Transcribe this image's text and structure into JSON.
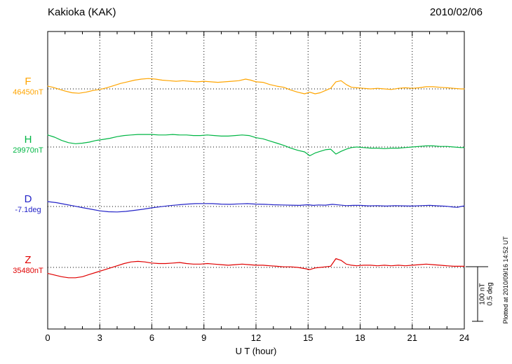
{
  "header": {
    "title": "Kakioka (KAK)",
    "date": "2010/02/06"
  },
  "axis": {
    "xlabel": "U T (hour)",
    "x_ticks": [
      0,
      3,
      6,
      9,
      12,
      15,
      18,
      21,
      24
    ],
    "x_min": 0,
    "x_max": 24
  },
  "side_note": "Plotted at 2010/09/16 14:52 UT",
  "scale_bar": {
    "labels": [
      "100 nT",
      "0.5 deg"
    ],
    "bar_nT": 100,
    "bar_deg": 0.5
  },
  "chart_data": {
    "type": "line",
    "title": "Kakioka (KAK) geomagnetic components, 2010/02/06",
    "xlabel": "U T (hour)",
    "x_range": [
      0,
      24
    ],
    "grid": "dotted vertical lines every 3 hours; dotted horizontal baseline per component",
    "legend_position": "left margin, one colored label per trace",
    "scale": {
      "bar_nT": 100,
      "bar_deg": 0.5
    },
    "series": [
      {
        "name": "F",
        "baseline_label": "46450nT",
        "baseline_value": 46450,
        "unit": "nT",
        "color": "#FFA500",
        "points": [
          [
            0,
            5
          ],
          [
            0.3,
            3
          ],
          [
            0.7,
            -1
          ],
          [
            1,
            -4
          ],
          [
            1.4,
            -7
          ],
          [
            1.8,
            -8
          ],
          [
            2.2,
            -6
          ],
          [
            2.6,
            -3
          ],
          [
            3,
            -1
          ],
          [
            3.4,
            2
          ],
          [
            3.8,
            6
          ],
          [
            4.2,
            10
          ],
          [
            4.6,
            13
          ],
          [
            5,
            16
          ],
          [
            5.4,
            18
          ],
          [
            5.8,
            19
          ],
          [
            6.2,
            18
          ],
          [
            6.6,
            16
          ],
          [
            7,
            15
          ],
          [
            7.4,
            14
          ],
          [
            7.8,
            15
          ],
          [
            8.2,
            14
          ],
          [
            8.6,
            13
          ],
          [
            9,
            14
          ],
          [
            9.4,
            13
          ],
          [
            9.8,
            12
          ],
          [
            10.2,
            13
          ],
          [
            10.6,
            14
          ],
          [
            11,
            15
          ],
          [
            11.4,
            18
          ],
          [
            11.7,
            16
          ],
          [
            12,
            13
          ],
          [
            12.4,
            12
          ],
          [
            12.8,
            8
          ],
          [
            13.2,
            5
          ],
          [
            13.6,
            3
          ],
          [
            14,
            -2
          ],
          [
            14.4,
            -6
          ],
          [
            14.8,
            -9
          ],
          [
            15.1,
            -6
          ],
          [
            15.4,
            -9
          ],
          [
            15.7,
            -7
          ],
          [
            16,
            -3
          ],
          [
            16.3,
            1
          ],
          [
            16.6,
            13
          ],
          [
            16.9,
            15
          ],
          [
            17.2,
            8
          ],
          [
            17.5,
            3
          ],
          [
            17.8,
            2
          ],
          [
            18.2,
            1
          ],
          [
            18.6,
            0
          ],
          [
            19,
            1
          ],
          [
            19.4,
            0
          ],
          [
            19.8,
            -1
          ],
          [
            20.2,
            1
          ],
          [
            20.6,
            2
          ],
          [
            21,
            1
          ],
          [
            21.4,
            2
          ],
          [
            21.8,
            4
          ],
          [
            22.2,
            4
          ],
          [
            22.6,
            3
          ],
          [
            23,
            2
          ],
          [
            23.4,
            1
          ],
          [
            23.8,
            0
          ],
          [
            24,
            0
          ]
        ]
      },
      {
        "name": "H",
        "baseline_label": "29970nT",
        "baseline_value": 29970,
        "unit": "nT",
        "color": "#00B644",
        "points": [
          [
            0,
            22
          ],
          [
            0.4,
            18
          ],
          [
            0.8,
            12
          ],
          [
            1.2,
            8
          ],
          [
            1.6,
            6
          ],
          [
            2,
            7
          ],
          [
            2.4,
            9
          ],
          [
            2.8,
            12
          ],
          [
            3.2,
            14
          ],
          [
            3.6,
            16
          ],
          [
            4,
            19
          ],
          [
            4.4,
            21
          ],
          [
            4.8,
            22
          ],
          [
            5.2,
            23
          ],
          [
            5.6,
            23
          ],
          [
            6,
            23
          ],
          [
            6.4,
            22
          ],
          [
            6.8,
            22
          ],
          [
            7.2,
            23
          ],
          [
            7.6,
            22
          ],
          [
            8,
            22
          ],
          [
            8.4,
            21
          ],
          [
            8.8,
            21
          ],
          [
            9.2,
            22
          ],
          [
            9.6,
            21
          ],
          [
            10,
            20
          ],
          [
            10.4,
            20
          ],
          [
            10.8,
            21
          ],
          [
            11.2,
            22
          ],
          [
            11.6,
            21
          ],
          [
            12,
            17
          ],
          [
            12.4,
            15
          ],
          [
            12.8,
            11
          ],
          [
            13.2,
            7
          ],
          [
            13.6,
            3
          ],
          [
            14,
            -2
          ],
          [
            14.4,
            -6
          ],
          [
            14.8,
            -9
          ],
          [
            15.1,
            -16
          ],
          [
            15.4,
            -11
          ],
          [
            15.7,
            -8
          ],
          [
            16,
            -5
          ],
          [
            16.3,
            -4
          ],
          [
            16.6,
            -13
          ],
          [
            16.9,
            -8
          ],
          [
            17.2,
            -4
          ],
          [
            17.5,
            -1
          ],
          [
            17.8,
            0
          ],
          [
            18.2,
            -1
          ],
          [
            18.6,
            -2
          ],
          [
            19,
            -2
          ],
          [
            19.4,
            -3
          ],
          [
            19.8,
            -2
          ],
          [
            20.2,
            -2
          ],
          [
            20.6,
            -1
          ],
          [
            21,
            0
          ],
          [
            21.4,
            1
          ],
          [
            21.8,
            2
          ],
          [
            22.2,
            2
          ],
          [
            22.6,
            1
          ],
          [
            23,
            1
          ],
          [
            23.4,
            0
          ],
          [
            23.8,
            -1
          ],
          [
            24,
            -1
          ]
        ]
      },
      {
        "name": "D",
        "baseline_label": "-7.1deg",
        "baseline_value": -7.1,
        "unit": "deg",
        "color": "#2424C8",
        "points": [
          [
            0,
            0.045
          ],
          [
            0.5,
            0.035
          ],
          [
            1,
            0.02
          ],
          [
            1.5,
            0.005
          ],
          [
            2,
            -0.01
          ],
          [
            2.5,
            -0.025
          ],
          [
            3,
            -0.04
          ],
          [
            3.5,
            -0.048
          ],
          [
            4,
            -0.05
          ],
          [
            4.5,
            -0.045
          ],
          [
            5,
            -0.035
          ],
          [
            5.5,
            -0.025
          ],
          [
            6,
            -0.012
          ],
          [
            6.5,
            -0.002
          ],
          [
            7,
            0.008
          ],
          [
            7.5,
            0.015
          ],
          [
            8,
            0.022
          ],
          [
            8.5,
            0.026
          ],
          [
            9,
            0.027
          ],
          [
            9.5,
            0.026
          ],
          [
            10,
            0.022
          ],
          [
            10.5,
            0.02
          ],
          [
            11,
            0.024
          ],
          [
            11.5,
            0.026
          ],
          [
            12,
            0.022
          ],
          [
            12.5,
            0.02
          ],
          [
            13,
            0.016
          ],
          [
            13.5,
            0.014
          ],
          [
            14,
            0.012
          ],
          [
            14.5,
            0.01
          ],
          [
            15,
            0.016
          ],
          [
            15.3,
            0.01
          ],
          [
            15.6,
            0.014
          ],
          [
            16,
            0.012
          ],
          [
            16.4,
            0.02
          ],
          [
            16.8,
            0.014
          ],
          [
            17.2,
            0.008
          ],
          [
            17.6,
            0.01
          ],
          [
            18,
            0.01
          ],
          [
            18.5,
            0.006
          ],
          [
            19,
            0.008
          ],
          [
            19.5,
            0.004
          ],
          [
            20,
            0.008
          ],
          [
            20.5,
            0.006
          ],
          [
            21,
            0.004
          ],
          [
            21.5,
            0.008
          ],
          [
            22,
            0.01
          ],
          [
            22.5,
            0.006
          ],
          [
            23,
            0.002
          ],
          [
            23.3,
            -0.004
          ],
          [
            23.6,
            -0.008
          ],
          [
            23.8,
            0
          ],
          [
            24,
            0.006
          ]
        ]
      },
      {
        "name": "Z",
        "baseline_label": "35480nT",
        "baseline_value": 35480,
        "unit": "nT",
        "color": "#E00000",
        "points": [
          [
            0,
            -11
          ],
          [
            0.4,
            -14
          ],
          [
            0.8,
            -17
          ],
          [
            1.2,
            -19
          ],
          [
            1.6,
            -19
          ],
          [
            2,
            -17
          ],
          [
            2.4,
            -13
          ],
          [
            2.8,
            -9
          ],
          [
            3.2,
            -5
          ],
          [
            3.6,
            -1
          ],
          [
            4,
            3
          ],
          [
            4.4,
            7
          ],
          [
            4.8,
            10
          ],
          [
            5.2,
            11
          ],
          [
            5.6,
            10
          ],
          [
            6,
            8
          ],
          [
            6.4,
            7
          ],
          [
            6.8,
            7
          ],
          [
            7.2,
            8
          ],
          [
            7.6,
            9
          ],
          [
            8,
            7
          ],
          [
            8.4,
            6
          ],
          [
            8.8,
            6
          ],
          [
            9.2,
            7
          ],
          [
            9.6,
            6
          ],
          [
            10,
            5
          ],
          [
            10.4,
            4
          ],
          [
            10.8,
            5
          ],
          [
            11.2,
            6
          ],
          [
            11.6,
            5
          ],
          [
            12,
            4
          ],
          [
            12.4,
            4
          ],
          [
            12.8,
            3
          ],
          [
            13.2,
            2
          ],
          [
            13.6,
            1
          ],
          [
            14,
            1
          ],
          [
            14.4,
            0
          ],
          [
            14.8,
            -2
          ],
          [
            15.1,
            -4
          ],
          [
            15.4,
            -1
          ],
          [
            15.7,
            0
          ],
          [
            16,
            1
          ],
          [
            16.3,
            2
          ],
          [
            16.6,
            16
          ],
          [
            16.9,
            13
          ],
          [
            17.2,
            6
          ],
          [
            17.5,
            4
          ],
          [
            17.8,
            3
          ],
          [
            18.2,
            4
          ],
          [
            18.6,
            4
          ],
          [
            19,
            3
          ],
          [
            19.4,
            4
          ],
          [
            19.8,
            3
          ],
          [
            20.2,
            4
          ],
          [
            20.6,
            3
          ],
          [
            21,
            4
          ],
          [
            21.4,
            5
          ],
          [
            21.8,
            6
          ],
          [
            22.2,
            5
          ],
          [
            22.6,
            4
          ],
          [
            23,
            3
          ],
          [
            23.4,
            2
          ],
          [
            23.8,
            2
          ],
          [
            24,
            2
          ]
        ]
      }
    ]
  }
}
